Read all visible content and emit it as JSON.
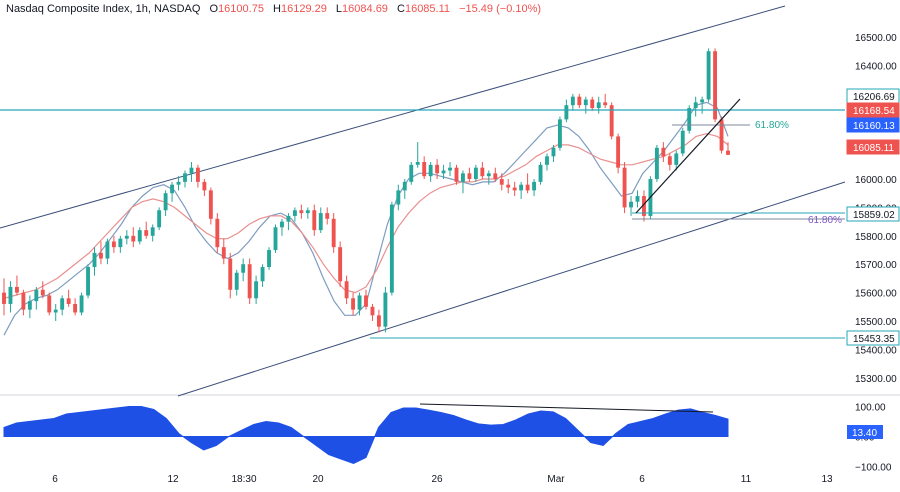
{
  "legend": {
    "title": "Nasdaq Composite Index, 1h, NASDAQ",
    "o_label": "O",
    "o_value": "16100.75",
    "h_label": "H",
    "h_value": "16129.29",
    "l_label": "L",
    "l_value": "16084.69",
    "c_label": "C",
    "c_value": "16085.11",
    "change": "−15.49 (−0.10%)"
  },
  "colors": {
    "up": "#26a69a",
    "down": "#ef5350",
    "fast_ma": "#7e9cc0",
    "slow_ma": "#e8908e",
    "channel": "#3b4f7a",
    "level": "#26a6b7",
    "fib_level": "#7e8a9c",
    "oscillator": "#1e50e6",
    "price_bg": "#ef5350",
    "dark_label_bg": "#2962ff"
  },
  "chart_data": [
    {
      "type": "candlestick",
      "title": "Nasdaq Composite Index, 1h, NASDAQ",
      "y_axis_ticks": [
        16500,
        16400,
        16300,
        16200,
        16100,
        16000,
        15900,
        15800,
        15700,
        15600,
        15500,
        15400,
        15300
      ],
      "y_axis_tick_labels": [
        "16500.00",
        "16400.00",
        "16300.00",
        "16200.00",
        "16100.00",
        "16000.00",
        "15900.00",
        "15800.00",
        "15700.00",
        "15600.00",
        "15500.00",
        "15400.00",
        "15300.00"
      ],
      "ylim": [
        15250,
        16560
      ],
      "x_axis_labels": [
        "6",
        "12",
        "18:30",
        "20",
        "26",
        "Mar",
        "6",
        "11",
        "13"
      ],
      "series": [
        {
          "name": "candles",
          "values_ohlc": [
            [
              15600,
              15650,
              15520,
              15560
            ],
            [
              15560,
              15640,
              15530,
              15620
            ],
            [
              15620,
              15660,
              15590,
              15600
            ],
            [
              15600,
              15610,
              15520,
              15540
            ],
            [
              15540,
              15590,
              15510,
              15570
            ],
            [
              15570,
              15620,
              15540,
              15610
            ],
            [
              15610,
              15640,
              15580,
              15590
            ],
            [
              15590,
              15600,
              15520,
              15530
            ],
            [
              15530,
              15560,
              15500,
              15540
            ],
            [
              15540,
              15590,
              15520,
              15580
            ],
            [
              15580,
              15610,
              15550,
              15560
            ],
            [
              15560,
              15580,
              15520,
              15530
            ],
            [
              15530,
              15600,
              15520,
              15590
            ],
            [
              15590,
              15700,
              15580,
              15690
            ],
            [
              15690,
              15760,
              15660,
              15740
            ],
            [
              15740,
              15780,
              15700,
              15720
            ],
            [
              15720,
              15790,
              15700,
              15780
            ],
            [
              15780,
              15800,
              15740,
              15760
            ],
            [
              15760,
              15800,
              15740,
              15790
            ],
            [
              15790,
              15820,
              15770,
              15800
            ],
            [
              15800,
              15830,
              15760,
              15780
            ],
            [
              15780,
              15830,
              15770,
              15820
            ],
            [
              15820,
              15850,
              15790,
              15800
            ],
            [
              15800,
              15840,
              15780,
              15830
            ],
            [
              15830,
              15900,
              15820,
              15890
            ],
            [
              15890,
              15960,
              15870,
              15950
            ],
            [
              15950,
              15990,
              15920,
              15980
            ],
            [
              15980,
              16010,
              15960,
              15990
            ],
            [
              15990,
              16030,
              15970,
              16020
            ],
            [
              16020,
              16060,
              15990,
              16040
            ],
            [
              16040,
              16050,
              15970,
              15990
            ],
            [
              15990,
              16000,
              15940,
              15960
            ],
            [
              15960,
              15970,
              15840,
              15860
            ],
            [
              15860,
              15880,
              15740,
              15760
            ],
            [
              15760,
              15790,
              15700,
              15720
            ],
            [
              15720,
              15740,
              15580,
              15610
            ],
            [
              15610,
              15680,
              15590,
              15670
            ],
            [
              15670,
              15720,
              15640,
              15700
            ],
            [
              15700,
              15720,
              15560,
              15580
            ],
            [
              15580,
              15660,
              15560,
              15640
            ],
            [
              15640,
              15700,
              15620,
              15690
            ],
            [
              15690,
              15760,
              15680,
              15750
            ],
            [
              15750,
              15840,
              15740,
              15830
            ],
            [
              15830,
              15860,
              15800,
              15850
            ],
            [
              15850,
              15880,
              15820,
              15870
            ],
            [
              15870,
              15900,
              15850,
              15890
            ],
            [
              15890,
              15910,
              15860,
              15880
            ],
            [
              15880,
              15900,
              15860,
              15890
            ],
            [
              15890,
              15910,
              15800,
              15820
            ],
            [
              15820,
              15900,
              15810,
              15880
            ],
            [
              15880,
              15900,
              15840,
              15860
            ],
            [
              15860,
              15880,
              15740,
              15760
            ],
            [
              15760,
              15780,
              15620,
              15640
            ],
            [
              15640,
              15660,
              15560,
              15580
            ],
            [
              15580,
              15600,
              15520,
              15540
            ],
            [
              15540,
              15600,
              15520,
              15590
            ],
            [
              15590,
              15610,
              15540,
              15550
            ],
            [
              15550,
              15560,
              15500,
              15520
            ],
            [
              15520,
              15540,
              15460,
              15480
            ],
            [
              15480,
              15620,
              15460,
              15600
            ],
            [
              15600,
              15920,
              15590,
              15910
            ],
            [
              15910,
              15980,
              15890,
              15960
            ],
            [
              15960,
              16000,
              15930,
              15990
            ],
            [
              15990,
              16060,
              15980,
              16050
            ],
            [
              16050,
              16130,
              16040,
              16060
            ],
            [
              16060,
              16080,
              16000,
              16010
            ],
            [
              16010,
              16060,
              15990,
              16050
            ],
            [
              16050,
              16070,
              16000,
              16020
            ],
            [
              16020,
              16050,
              16000,
              16030
            ],
            [
              16030,
              16060,
              16010,
              16040
            ],
            [
              16040,
              16050,
              15980,
              15990
            ],
            [
              15990,
              16030,
              15950,
              16020
            ],
            [
              16020,
              16040,
              15990,
              16000
            ],
            [
              16000,
              16050,
              15990,
              16040
            ],
            [
              16040,
              16060,
              16000,
              16010
            ],
            [
              16010,
              16030,
              15980,
              16020
            ],
            [
              16020,
              16040,
              15990,
              16000
            ],
            [
              16000,
              16020,
              15960,
              15980
            ],
            [
              15980,
              16000,
              15950,
              15970
            ],
            [
              15970,
              15990,
              15940,
              15960
            ],
            [
              15960,
              15990,
              15930,
              15980
            ],
            [
              15980,
              16020,
              15950,
              15960
            ],
            [
              15960,
              16000,
              15940,
              15990
            ],
            [
              15990,
              16060,
              15980,
              16050
            ],
            [
              16050,
              16090,
              16030,
              16080
            ],
            [
              16080,
              16120,
              16060,
              16110
            ],
            [
              16110,
              16220,
              16100,
              16210
            ],
            [
              16210,
              16280,
              16200,
              16260
            ],
            [
              16260,
              16300,
              16240,
              16290
            ],
            [
              16290,
              16300,
              16250,
              16260
            ],
            [
              16260,
              16290,
              16230,
              16280
            ],
            [
              16280,
              16290,
              16240,
              16250
            ],
            [
              16250,
              16290,
              16230,
              16270
            ],
            [
              16270,
              16300,
              16250,
              16260
            ],
            [
              16260,
              16270,
              16140,
              16150
            ],
            [
              16150,
              16160,
              16020,
              16040
            ],
            [
              16040,
              16060,
              15880,
              15900
            ],
            [
              15900,
              15940,
              15870,
              15920
            ],
            [
              15920,
              15960,
              15900,
              15940
            ],
            [
              15940,
              15960,
              15850,
              15870
            ],
            [
              15870,
              16010,
              15860,
              16000
            ],
            [
              16000,
              16120,
              15990,
              16110
            ],
            [
              16110,
              16130,
              16060,
              16080
            ],
            [
              16080,
              16090,
              16030,
              16050
            ],
            [
              16050,
              16100,
              16030,
              16090
            ],
            [
              16090,
              16180,
              16080,
              16170
            ],
            [
              16170,
              16260,
              16160,
              16250
            ],
            [
              16250,
              16290,
              16220,
              16270
            ],
            [
              16270,
              16290,
              16230,
              16280
            ],
            [
              16280,
              16460,
              16270,
              16450
            ],
            [
              16450,
              16460,
              16200,
              16210
            ],
            [
              16210,
              16220,
              16090,
              16100
            ],
            [
              16100,
              16129.29,
              16084.69,
              16085.11
            ]
          ]
        },
        {
          "name": "fast_ma",
          "values": [
            15450,
            15520,
            15560,
            15580,
            15590,
            15610,
            15640,
            15670,
            15700,
            15740,
            15790,
            15840,
            15900,
            15940,
            15970,
            15980,
            15960,
            15900,
            15830,
            15780,
            15740,
            15720,
            15740,
            15780,
            15830,
            15870,
            15880,
            15860,
            15810,
            15740,
            15650,
            15570,
            15520,
            15520,
            15560,
            15700,
            15840,
            15940,
            16000,
            16020,
            16020,
            16010,
            16000,
            15990,
            15980,
            15990,
            15990,
            16020,
            16060,
            16100,
            16140,
            16180,
            16190,
            16180,
            16150,
            16100,
            16040,
            15990,
            15940,
            15950,
            16020,
            16060,
            16100,
            16150,
            16200,
            16260,
            16270,
            16250,
            16150
          ]
        },
        {
          "name": "slow_ma",
          "values": [
            15580,
            15590,
            15600,
            15610,
            15630,
            15650,
            15680,
            15710,
            15740,
            15780,
            15820,
            15860,
            15900,
            15920,
            15930,
            15920,
            15900,
            15870,
            15840,
            15810,
            15790,
            15790,
            15810,
            15840,
            15860,
            15870,
            15870,
            15850,
            15810,
            15760,
            15700,
            15650,
            15610,
            15600,
            15620,
            15680,
            15760,
            15830,
            15880,
            15920,
            15950,
            15970,
            15980,
            15990,
            15990,
            16000,
            16000,
            16010,
            16030,
            16050,
            16080,
            16100,
            16120,
            16120,
            16110,
            16090,
            16070,
            16060,
            16050,
            16050,
            16060,
            16070,
            16080,
            16100,
            16120,
            16150,
            16160,
            16150,
            16120
          ]
        },
        {
          "name": "oscillator",
          "values": [
            30,
            45,
            50,
            55,
            60,
            75,
            80,
            85,
            90,
            95,
            100,
            100,
            90,
            60,
            10,
            -20,
            -45,
            -30,
            0,
            20,
            40,
            50,
            45,
            30,
            0,
            -30,
            -60,
            -75,
            -90,
            -70,
            30,
            80,
            95,
            95,
            88,
            80,
            70,
            55,
            42,
            38,
            40,
            55,
            75,
            85,
            82,
            60,
            20,
            -20,
            -30,
            10,
            40,
            50,
            60,
            75,
            88,
            92,
            80,
            70,
            58
          ]
        }
      ]
    },
    {
      "type": "area",
      "title": "",
      "y_axis_ticks": [
        100,
        0,
        -100
      ],
      "y_axis_tick_labels": [
        "100.00",
        "0.00",
        "−100.00"
      ]
    }
  ],
  "annotations": {
    "fib_upper_label": "61.80%",
    "fib_lower_label": "61.80%",
    "price_tags": [
      {
        "text": "16206.69",
        "style": "teal"
      },
      {
        "text": "16168.54",
        "style": "red"
      },
      {
        "text": "16160.13",
        "style": "blue"
      },
      {
        "text": "16085.11",
        "style": "red"
      },
      {
        "text": "15859.02",
        "style": "teal"
      },
      {
        "text": "15453.35",
        "style": "teal"
      }
    ],
    "oscillator_tag": "13.40"
  }
}
